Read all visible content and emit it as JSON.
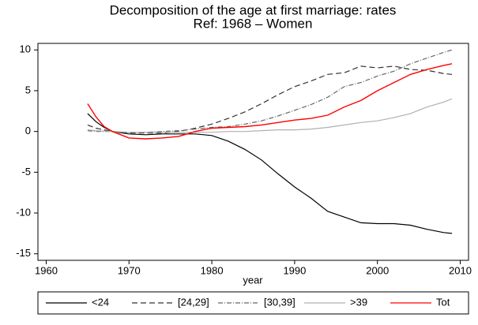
{
  "chart_data": {
    "type": "line",
    "title": "Decomposition of the age at first marriage: rates",
    "subtitle": "Ref: 1968 – Women",
    "x_label": "year",
    "x": [
      1965,
      1966,
      1967,
      1968,
      1970,
      1972,
      1974,
      1976,
      1978,
      1980,
      1982,
      1984,
      1986,
      1988,
      1990,
      1992,
      1994,
      1996,
      1998,
      2000,
      2002,
      2004,
      2006,
      2008,
      2009
    ],
    "series": [
      {
        "name": "<24",
        "color": "#000000",
        "dash": "none",
        "values": [
          2.2,
          1.2,
          0.5,
          0,
          -0.3,
          -0.4,
          -0.3,
          -0.3,
          -0.3,
          -0.5,
          -1.2,
          -2.2,
          -3.5,
          -5.2,
          -6.8,
          -8.2,
          -9.8,
          -10.5,
          -11.2,
          -11.3,
          -11.3,
          -11.5,
          -12.0,
          -12.4,
          -12.5
        ]
      },
      {
        "name": "[24,29]",
        "color": "#333333",
        "dash": "7,4",
        "values": [
          0.8,
          0.4,
          0.2,
          0,
          -0.2,
          -0.2,
          -0.2,
          0,
          0.4,
          0.9,
          1.6,
          2.4,
          3.4,
          4.5,
          5.5,
          6.2,
          7.0,
          7.2,
          8.0,
          7.8,
          8.0,
          7.6,
          7.5,
          7.1,
          7.0
        ]
      },
      {
        "name": "[30,39]",
        "color": "#666666",
        "dash": "6,2,1,2",
        "values": [
          0.1,
          0,
          0,
          0,
          -0.1,
          -0.1,
          0,
          0.1,
          0.3,
          0.5,
          0.6,
          0.9,
          1.3,
          1.9,
          2.6,
          3.3,
          4.2,
          5.5,
          6.0,
          6.8,
          7.4,
          8.3,
          9.0,
          9.7,
          10.0
        ]
      },
      {
        "name": ">39",
        "color": "#b0b0b0",
        "dash": "none",
        "values": [
          0.2,
          0.1,
          0.05,
          0,
          -0.1,
          -0.1,
          -0.1,
          -0.1,
          -0.1,
          -0.1,
          0,
          0,
          0.1,
          0.2,
          0.2,
          0.3,
          0.5,
          0.8,
          1.1,
          1.3,
          1.7,
          2.2,
          3.0,
          3.6,
          4.0
        ]
      },
      {
        "name": "Tot",
        "color": "#ff0000",
        "dash": "none",
        "values": [
          3.4,
          1.8,
          0.6,
          0,
          -0.8,
          -0.9,
          -0.8,
          -0.6,
          0,
          0.4,
          0.5,
          0.6,
          0.8,
          1.1,
          1.4,
          1.6,
          2.0,
          3.0,
          3.8,
          5.0,
          6.0,
          7.0,
          7.6,
          8.1,
          8.3
        ]
      }
    ],
    "xlim": [
      1959,
      2011
    ],
    "xticks": [
      1960,
      1970,
      1980,
      1990,
      2000,
      2010
    ],
    "ylim": [
      -15.8,
      10.8
    ],
    "yticks": [
      -15,
      -10,
      -5,
      0,
      5,
      10
    ],
    "grid": false,
    "legend": "bottom"
  }
}
